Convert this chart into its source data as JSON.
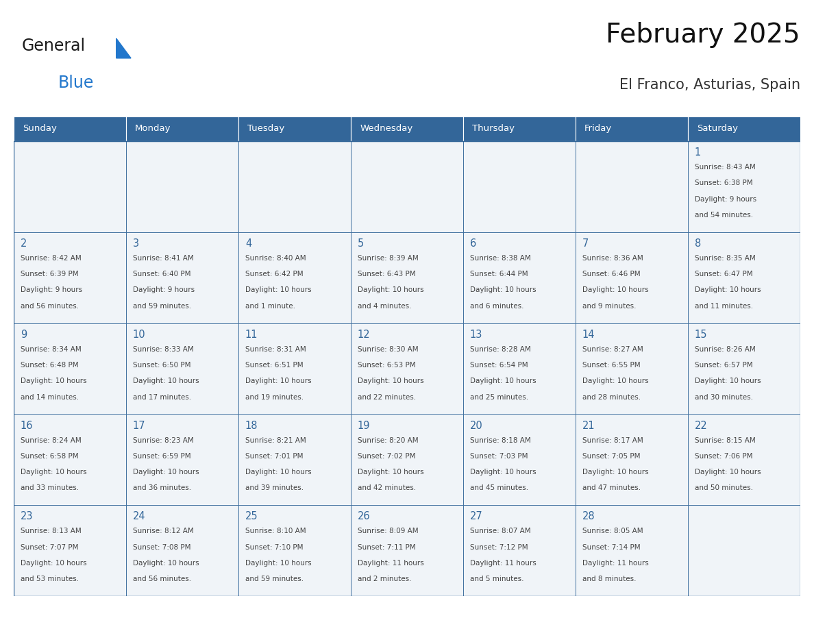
{
  "title": "February 2025",
  "subtitle": "El Franco, Asturias, Spain",
  "header_bg": "#336699",
  "header_text_color": "#ffffff",
  "day_names": [
    "Sunday",
    "Monday",
    "Tuesday",
    "Wednesday",
    "Thursday",
    "Friday",
    "Saturday"
  ],
  "cell_bg": "#f0f4f8",
  "border_color": "#336699",
  "text_color_num": "#336699",
  "general_text": "#444444",
  "logo_general_color": "#1a1a1a",
  "logo_blue_color": "#2277cc",
  "weeks": [
    [
      {
        "day": null,
        "info": null
      },
      {
        "day": null,
        "info": null
      },
      {
        "day": null,
        "info": null
      },
      {
        "day": null,
        "info": null
      },
      {
        "day": null,
        "info": null
      },
      {
        "day": null,
        "info": null
      },
      {
        "day": 1,
        "info": "Sunrise: 8:43 AM\nSunset: 6:38 PM\nDaylight: 9 hours\nand 54 minutes."
      }
    ],
    [
      {
        "day": 2,
        "info": "Sunrise: 8:42 AM\nSunset: 6:39 PM\nDaylight: 9 hours\nand 56 minutes."
      },
      {
        "day": 3,
        "info": "Sunrise: 8:41 AM\nSunset: 6:40 PM\nDaylight: 9 hours\nand 59 minutes."
      },
      {
        "day": 4,
        "info": "Sunrise: 8:40 AM\nSunset: 6:42 PM\nDaylight: 10 hours\nand 1 minute."
      },
      {
        "day": 5,
        "info": "Sunrise: 8:39 AM\nSunset: 6:43 PM\nDaylight: 10 hours\nand 4 minutes."
      },
      {
        "day": 6,
        "info": "Sunrise: 8:38 AM\nSunset: 6:44 PM\nDaylight: 10 hours\nand 6 minutes."
      },
      {
        "day": 7,
        "info": "Sunrise: 8:36 AM\nSunset: 6:46 PM\nDaylight: 10 hours\nand 9 minutes."
      },
      {
        "day": 8,
        "info": "Sunrise: 8:35 AM\nSunset: 6:47 PM\nDaylight: 10 hours\nand 11 minutes."
      }
    ],
    [
      {
        "day": 9,
        "info": "Sunrise: 8:34 AM\nSunset: 6:48 PM\nDaylight: 10 hours\nand 14 minutes."
      },
      {
        "day": 10,
        "info": "Sunrise: 8:33 AM\nSunset: 6:50 PM\nDaylight: 10 hours\nand 17 minutes."
      },
      {
        "day": 11,
        "info": "Sunrise: 8:31 AM\nSunset: 6:51 PM\nDaylight: 10 hours\nand 19 minutes."
      },
      {
        "day": 12,
        "info": "Sunrise: 8:30 AM\nSunset: 6:53 PM\nDaylight: 10 hours\nand 22 minutes."
      },
      {
        "day": 13,
        "info": "Sunrise: 8:28 AM\nSunset: 6:54 PM\nDaylight: 10 hours\nand 25 minutes."
      },
      {
        "day": 14,
        "info": "Sunrise: 8:27 AM\nSunset: 6:55 PM\nDaylight: 10 hours\nand 28 minutes."
      },
      {
        "day": 15,
        "info": "Sunrise: 8:26 AM\nSunset: 6:57 PM\nDaylight: 10 hours\nand 30 minutes."
      }
    ],
    [
      {
        "day": 16,
        "info": "Sunrise: 8:24 AM\nSunset: 6:58 PM\nDaylight: 10 hours\nand 33 minutes."
      },
      {
        "day": 17,
        "info": "Sunrise: 8:23 AM\nSunset: 6:59 PM\nDaylight: 10 hours\nand 36 minutes."
      },
      {
        "day": 18,
        "info": "Sunrise: 8:21 AM\nSunset: 7:01 PM\nDaylight: 10 hours\nand 39 minutes."
      },
      {
        "day": 19,
        "info": "Sunrise: 8:20 AM\nSunset: 7:02 PM\nDaylight: 10 hours\nand 42 minutes."
      },
      {
        "day": 20,
        "info": "Sunrise: 8:18 AM\nSunset: 7:03 PM\nDaylight: 10 hours\nand 45 minutes."
      },
      {
        "day": 21,
        "info": "Sunrise: 8:17 AM\nSunset: 7:05 PM\nDaylight: 10 hours\nand 47 minutes."
      },
      {
        "day": 22,
        "info": "Sunrise: 8:15 AM\nSunset: 7:06 PM\nDaylight: 10 hours\nand 50 minutes."
      }
    ],
    [
      {
        "day": 23,
        "info": "Sunrise: 8:13 AM\nSunset: 7:07 PM\nDaylight: 10 hours\nand 53 minutes."
      },
      {
        "day": 24,
        "info": "Sunrise: 8:12 AM\nSunset: 7:08 PM\nDaylight: 10 hours\nand 56 minutes."
      },
      {
        "day": 25,
        "info": "Sunrise: 8:10 AM\nSunset: 7:10 PM\nDaylight: 10 hours\nand 59 minutes."
      },
      {
        "day": 26,
        "info": "Sunrise: 8:09 AM\nSunset: 7:11 PM\nDaylight: 11 hours\nand 2 minutes."
      },
      {
        "day": 27,
        "info": "Sunrise: 8:07 AM\nSunset: 7:12 PM\nDaylight: 11 hours\nand 5 minutes."
      },
      {
        "day": 28,
        "info": "Sunrise: 8:05 AM\nSunset: 7:14 PM\nDaylight: 11 hours\nand 8 minutes."
      },
      {
        "day": null,
        "info": null
      }
    ]
  ]
}
